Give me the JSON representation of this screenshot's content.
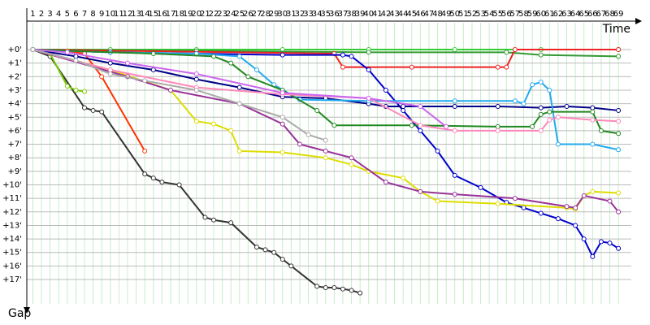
{
  "chart_data": {
    "type": "line",
    "x_label": "Time",
    "y_label": "Gap",
    "xlim": [
      0.3,
      70.5
    ],
    "ylim": [
      -0.5,
      18.8
    ],
    "y_inverted": true,
    "grid": true,
    "xticks": [
      1,
      2,
      3,
      4,
      5,
      6,
      7,
      8,
      9,
      10,
      11,
      12,
      13,
      14,
      15,
      16,
      17,
      18,
      19,
      20,
      21,
      22,
      23,
      24,
      25,
      26,
      27,
      28,
      29,
      30,
      31,
      32,
      33,
      34,
      35,
      36,
      37,
      38,
      39,
      40,
      41,
      42,
      43,
      44,
      45,
      46,
      47,
      48,
      49,
      50,
      51,
      52,
      53,
      54,
      55,
      56,
      57,
      58,
      59,
      60,
      61,
      62,
      63,
      64,
      65,
      66,
      67,
      68,
      69
    ],
    "yticks": [
      {
        "value": 0,
        "label": "+0'"
      },
      {
        "value": 1,
        "label": "+1'"
      },
      {
        "value": 2,
        "label": "+2'"
      },
      {
        "value": 3,
        "label": "+3'"
      },
      {
        "value": 4,
        "label": "+4'"
      },
      {
        "value": 5,
        "label": "+5'"
      },
      {
        "value": 6,
        "label": "+6'"
      },
      {
        "value": 7,
        "label": "+7'"
      },
      {
        "value": 8,
        "label": "+8'"
      },
      {
        "value": 9,
        "label": "+9'"
      },
      {
        "value": 10,
        "label": "+10'"
      },
      {
        "value": 11,
        "label": "+11'"
      },
      {
        "value": 12,
        "label": "+12'"
      },
      {
        "value": 13,
        "label": "+13'"
      },
      {
        "value": 14,
        "label": "+14'"
      },
      {
        "value": 15,
        "label": "+15'"
      },
      {
        "value": 16,
        "label": "+16'"
      },
      {
        "value": 17,
        "label": "+17'"
      }
    ],
    "series": [
      {
        "color": "#33cc33",
        "x": [
          1,
          10,
          20,
          30,
          40,
          50,
          60,
          69
        ],
        "values": [
          0,
          0,
          0,
          0,
          0,
          0,
          0,
          0
        ]
      },
      {
        "color": "#339933",
        "x": [
          1,
          20,
          40,
          56,
          60,
          69
        ],
        "values": [
          0,
          0.1,
          0.2,
          0.2,
          0.4,
          0.5
        ]
      },
      {
        "color": "#ee2222",
        "x": [
          1,
          36,
          37,
          45,
          55,
          56,
          57,
          69
        ],
        "values": [
          0,
          0.3,
          1.3,
          1.3,
          1.3,
          1.3,
          0,
          0
        ]
      },
      {
        "color": "#0000cc",
        "x": [
          1,
          10,
          20,
          30,
          37,
          38,
          40,
          42,
          44,
          46,
          48,
          50,
          53,
          56,
          58,
          60,
          62,
          64,
          65,
          66,
          67,
          68,
          69
        ],
        "values": [
          0,
          0.2,
          0.3,
          0.4,
          0.4,
          0.5,
          1.5,
          3,
          4.5,
          6,
          7.5,
          9.3,
          10.2,
          11.3,
          11.7,
          12.1,
          12.5,
          13,
          14,
          15.3,
          14.2,
          14.3,
          14.7
        ]
      },
      {
        "color": "#333333",
        "x": [
          1,
          3,
          7,
          8,
          9,
          14,
          15,
          16,
          18,
          21,
          22,
          24,
          27,
          28,
          29,
          30,
          31,
          34,
          35,
          36,
          37,
          38,
          39
        ],
        "values": [
          0,
          0.5,
          4.3,
          4.5,
          4.6,
          9.2,
          9.5,
          9.8,
          10,
          12.4,
          12.6,
          12.8,
          14.6,
          14.8,
          15,
          15.5,
          16,
          17.5,
          17.6,
          17.6,
          17.7,
          17.8,
          18
        ]
      },
      {
        "color": "#ff3300",
        "x": [
          1,
          5,
          7,
          9,
          14
        ],
        "values": [
          0,
          0.1,
          0.3,
          2,
          7.5
        ]
      },
      {
        "color": "#77cc00",
        "x": [
          1,
          3,
          5,
          6,
          7
        ],
        "values": [
          0,
          0.3,
          2.7,
          3,
          3.1
        ]
      },
      {
        "color": "#dddd00",
        "x": [
          1,
          10,
          17,
          20,
          22,
          24,
          25,
          30,
          35,
          38,
          40,
          44,
          46,
          48,
          55,
          63,
          64,
          65,
          66,
          69
        ],
        "values": [
          0,
          1.5,
          3,
          5.3,
          5.5,
          6,
          7.5,
          7.6,
          8,
          8.5,
          9,
          9.5,
          10.5,
          11.2,
          11.4,
          11.7,
          11.8,
          10.8,
          10.5,
          10.6
        ]
      },
      {
        "color": "#993399",
        "x": [
          1,
          12,
          17,
          25,
          30,
          32,
          35,
          38,
          42,
          46,
          50,
          57,
          63,
          64,
          65,
          68,
          69
        ],
        "values": [
          0,
          2,
          3,
          4,
          5.5,
          7,
          7.5,
          8,
          9.8,
          10.5,
          10.7,
          11,
          11.6,
          11.7,
          10.8,
          11.2,
          12
        ]
      },
      {
        "color": "#000088",
        "x": [
          1,
          6,
          10,
          15,
          20,
          25,
          30,
          35,
          40,
          42,
          44,
          50,
          55,
          60,
          63,
          66,
          69
        ],
        "values": [
          0,
          0.5,
          1,
          1.5,
          2.2,
          2.8,
          3.5,
          3.6,
          4,
          4.2,
          4.2,
          4.2,
          4.2,
          4.3,
          4.2,
          4.3,
          4.5
        ]
      },
      {
        "color": "#22aaee",
        "x": [
          1,
          10,
          20,
          25,
          27,
          29,
          32,
          40,
          50,
          57,
          58,
          59,
          60,
          61,
          62,
          66,
          69
        ],
        "values": [
          0,
          0.2,
          0.3,
          0.5,
          1.5,
          2.6,
          3.7,
          3.8,
          3.8,
          3.8,
          4,
          2.6,
          2.4,
          3,
          7,
          7,
          7.4
        ]
      },
      {
        "color": "#228822",
        "x": [
          1,
          15,
          22,
          24,
          26,
          30,
          34,
          36,
          45,
          55,
          59,
          60,
          61,
          66,
          67,
          69
        ],
        "values": [
          0,
          0.3,
          0.5,
          1,
          2,
          3,
          4.5,
          5.6,
          5.6,
          5.7,
          5.7,
          4.8,
          4.6,
          4.6,
          6,
          6.2
        ]
      },
      {
        "color": "#ff88bb",
        "x": [
          1,
          10,
          20,
          30,
          40,
          46,
          50,
          55,
          60,
          61,
          62,
          66,
          69
        ],
        "values": [
          0,
          1.5,
          2.8,
          3.3,
          3.6,
          5.6,
          6,
          6,
          6,
          5.2,
          5,
          5.2,
          5.3
        ]
      },
      {
        "color": "#cc66ee",
        "x": [
          1,
          5,
          12,
          20,
          30,
          40,
          46,
          49
        ],
        "values": [
          0,
          0.2,
          1,
          1.8,
          3.2,
          3.6,
          4.2,
          5.7
        ]
      },
      {
        "color": "#aaaaaa",
        "x": [
          1,
          6,
          10,
          14,
          20,
          25,
          30,
          33,
          35
        ],
        "values": [
          0,
          0.8,
          1.8,
          2.3,
          3,
          4,
          5,
          6.3,
          6.7
        ]
      }
    ]
  }
}
